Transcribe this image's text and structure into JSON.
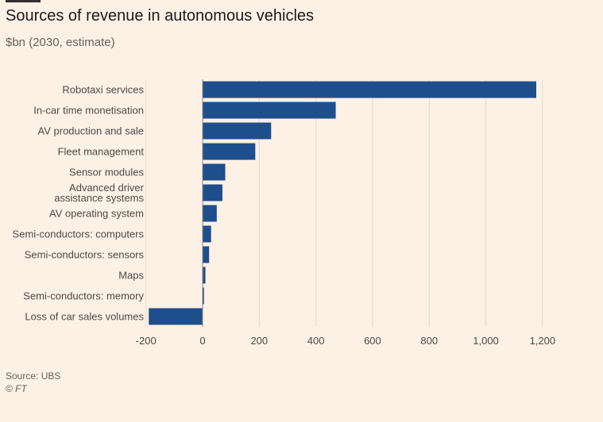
{
  "title": "Sources of revenue in autonomous vehicles",
  "subtitle": "$bn (2030, estimate)",
  "source": "Source: UBS",
  "copyright": "© FT",
  "chart_data": {
    "type": "bar",
    "orientation": "horizontal",
    "title": "Sources of revenue in autonomous vehicles",
    "subtitle": "$bn (2030, estimate)",
    "xlabel": "",
    "ylabel": "",
    "xlim": [
      -200,
      1200
    ],
    "grid": true,
    "bar_color": "#1f4e8c",
    "categories": [
      [
        "Robotaxi services"
      ],
      [
        "In-car time monetisation"
      ],
      [
        "AV production and sale"
      ],
      [
        "Fleet management"
      ],
      [
        "Sensor modules"
      ],
      [
        "Advanced driver",
        "assistance systems"
      ],
      [
        "AV operating system"
      ],
      [
        "Semi-conductors: computers"
      ],
      [
        "Semi-conductors: sensors"
      ],
      [
        "Maps"
      ],
      [
        "Semi-conductors: memory"
      ],
      [
        "Loss of car sales volumes"
      ]
    ],
    "values": [
      1178,
      470,
      242,
      186,
      80,
      70,
      50,
      30,
      23,
      10,
      5,
      -190
    ],
    "x_ticks": [
      -200,
      0,
      200,
      400,
      600,
      800,
      1000,
      1200
    ],
    "x_tick_labels": [
      "-200",
      "0",
      "200",
      "400",
      "600",
      "800",
      "1,000",
      "1,200"
    ]
  }
}
